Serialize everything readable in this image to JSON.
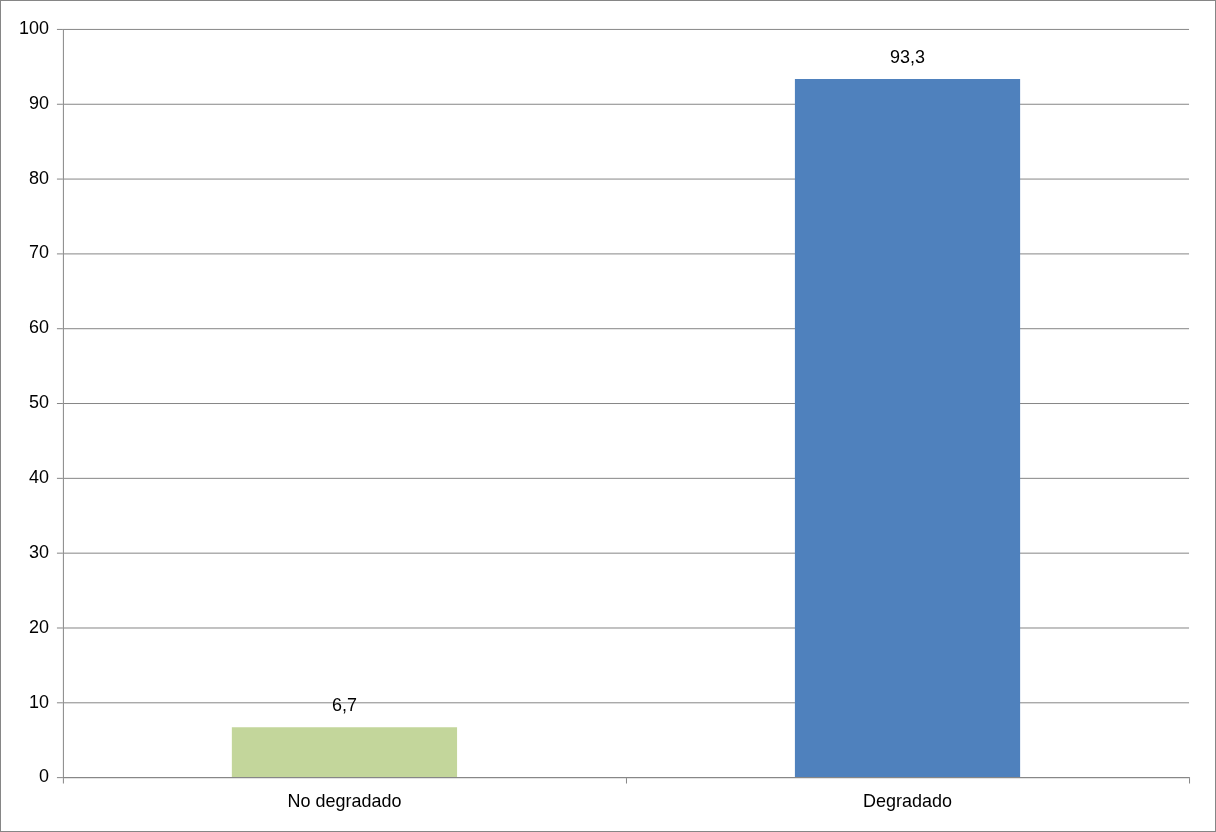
{
  "chart_data": {
    "type": "bar",
    "categories": [
      "No degradado",
      "Degradado"
    ],
    "values": [
      6.7,
      93.3
    ],
    "colors": [
      "#c3d69b",
      "#4f81bd"
    ],
    "value_labels": [
      "6,7",
      "93,3"
    ],
    "ylim": [
      0,
      100
    ],
    "yticks": [
      0,
      10,
      20,
      30,
      40,
      50,
      60,
      70,
      80,
      90,
      100
    ],
    "grid": "y"
  }
}
